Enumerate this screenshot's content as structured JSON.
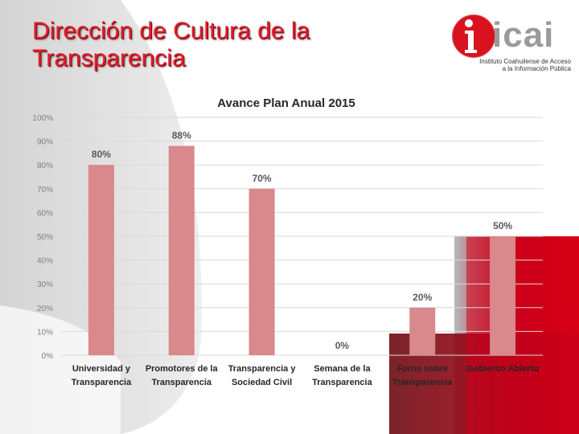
{
  "slide": {
    "title_line1": "Dirección de Cultura de la",
    "title_line2": "Transparencia"
  },
  "logo": {
    "name": "icai",
    "subtitle_line1": "Instituto Coahuilense de Acceso",
    "subtitle_line2": "a la Información Pública"
  },
  "colors": {
    "title": "#e01e2b",
    "bar": "#d9888c",
    "accent_red": "#c8001c",
    "grid": "#d9d9d9",
    "tick_text": "#7f7f7f"
  },
  "chart_data": {
    "type": "bar",
    "title": "Avance Plan Anual 2015",
    "categories": [
      [
        "Universidad y",
        "Transparencia"
      ],
      [
        "Promotores de la",
        "Transparencia"
      ],
      [
        "Transparencia y",
        "Sociedad Civil"
      ],
      [
        "Semana de la",
        "Transparencia"
      ],
      [
        "Foros sobre",
        "Transparencia"
      ],
      [
        "Gobierno Abierto"
      ]
    ],
    "values": [
      80,
      88,
      70,
      0,
      20,
      50
    ],
    "data_labels": [
      "80%",
      "88%",
      "70%",
      "0%",
      "20%",
      "50%"
    ],
    "ylim": [
      0,
      100
    ],
    "yticks": [
      "0%",
      "10%",
      "20%",
      "30%",
      "40%",
      "50%",
      "60%",
      "70%",
      "80%",
      "90%",
      "100%"
    ],
    "xlabel": "",
    "ylabel": "",
    "grid": true,
    "legend": "none"
  }
}
